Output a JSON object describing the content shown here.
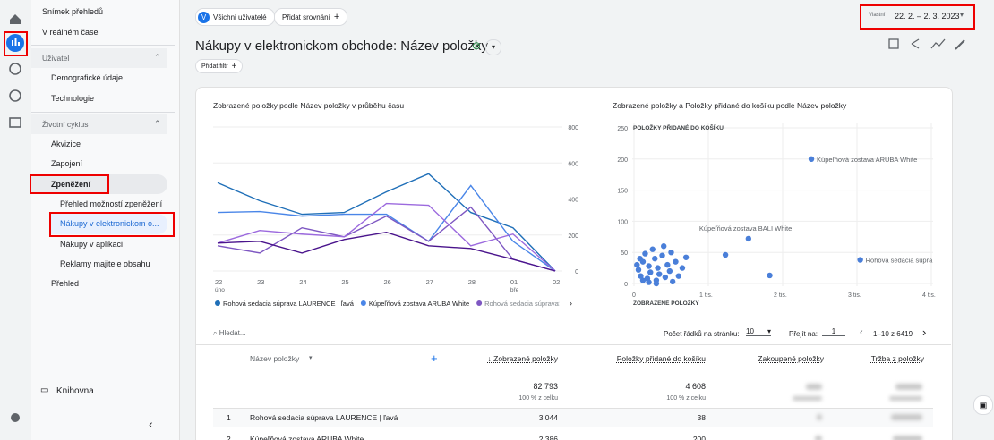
{
  "top_bar": {
    "audience_avatar": "V",
    "audience": "Všichni uživatelé",
    "add_comparison": "Přidat srovnání",
    "date_label": "Vlastní",
    "date_range": "22. 2. – 2. 3. 2023"
  },
  "sidebar": {
    "items": [
      "Snímek přehledů",
      "V reálném čase",
      "Uživatel",
      "Demografické údaje",
      "Technologie",
      "Životní cyklus",
      "Akvizice",
      "Zapojení",
      "Zpeněžení",
      "Přehled možností zpeněžení",
      "Nákupy v elektronickom o...",
      "Nákupy v aplikaci",
      "Reklamy majitele obsahu",
      "Přehled"
    ],
    "library": "Knihovna"
  },
  "header": {
    "title": "Nákupy v elektronickom obchode: Název položky",
    "add_filter": "Přidat filtr"
  },
  "chart_data": [
    {
      "type": "line",
      "title": "Zobrazené položky podle Název položky v průběhu času",
      "categories": [
        "22",
        "23",
        "24",
        "25",
        "26",
        "27",
        "28",
        "01",
        "02"
      ],
      "x_sublabels": [
        "úno",
        null,
        null,
        null,
        null,
        null,
        null,
        "bře",
        null
      ],
      "ylim": [
        0,
        800
      ],
      "yticks": [
        0,
        200,
        400,
        600,
        800
      ],
      "grid": true,
      "series": [
        {
          "name": "Rohová sedacia súprava LAURENCE | ľavá",
          "color": "#1f6fb8",
          "values": [
            490,
            390,
            315,
            325,
            440,
            540,
            325,
            240,
            0
          ]
        },
        {
          "name": "Kúpeľňová zostava ARUBA White",
          "color": "#4a86e8",
          "values": [
            325,
            330,
            305,
            315,
            315,
            165,
            475,
            165,
            0
          ]
        },
        {
          "name": "Rohová sedacia súprava",
          "color": "#7e57c2",
          "values": [
            140,
            100,
            240,
            190,
            305,
            165,
            355,
            65,
            0
          ]
        },
        {
          "color": "#9c6ade",
          "values": [
            155,
            225,
            205,
            190,
            375,
            365,
            140,
            205,
            0
          ]
        },
        {
          "color": "#4a148c",
          "values": [
            155,
            165,
            100,
            175,
            215,
            140,
            125,
            65,
            0
          ]
        }
      ]
    },
    {
      "type": "scatter",
      "title": "Zobrazené položky a Položky přidané do košíku podle Název položky",
      "xlabel": "ZOBRAZENÉ POLOŽKY",
      "ylabel": "POLOŽKY PŘIDANÉ DO KOŠÍKU",
      "xlim": [
        0,
        4000
      ],
      "xticks": [
        0,
        {
          "value": 1000,
          "label": "1 tis."
        },
        {
          "value": 2000,
          "label": "2 tis."
        },
        {
          "value": 3000,
          "label": "3 tis."
        },
        {
          "value": 4000,
          "label": "4 tis."
        }
      ],
      "ylim": [
        0,
        250
      ],
      "yticks": [
        0,
        50,
        100,
        150,
        200,
        250
      ],
      "grid": true,
      "series": [
        {
          "color": "#4a7fd9",
          "x": [
            40,
            60,
            90,
            120,
            150,
            180,
            200,
            220,
            250,
            280,
            300,
            320,
            340,
            380,
            400,
            420,
            450,
            480,
            500,
            520,
            560,
            600,
            650,
            700,
            120,
            200,
            300,
            80,
            1230,
            1540,
            1826,
            2386,
            3044
          ],
          "values": [
            30,
            22,
            12,
            35,
            48,
            8,
            28,
            18,
            55,
            40,
            5,
            25,
            15,
            45,
            60,
            10,
            30,
            20,
            50,
            3,
            35,
            12,
            25,
            42,
            5,
            2,
            0,
            40,
            46,
            72,
            13,
            200,
            38
          ],
          "labels": [
            null,
            null,
            null,
            null,
            null,
            null,
            null,
            null,
            null,
            null,
            null,
            null,
            null,
            null,
            null,
            null,
            null,
            null,
            null,
            null,
            null,
            null,
            null,
            null,
            null,
            null,
            null,
            null,
            null,
            "Kúpeľňová zostava BALI White",
            null,
            "Kúpeľňová zostava ARUBA White",
            "Rohová sedacia súpra"
          ]
        }
      ]
    }
  ],
  "table": {
    "search": "Hledat...",
    "rows_per_page_label": "Počet řádků na stránku:",
    "rows_per_page": "10",
    "go_to_label": "Přejít na:",
    "go_to": "1",
    "pagination": "1–10 z 6419",
    "columns": [
      "Název položky",
      "Zobrazené položky",
      "Položky přidané do košíku",
      "Zakoupené položky",
      "Tržba z položky"
    ],
    "totals": [
      [
        "82 793",
        "100 % z celku"
      ],
      [
        "4 608",
        "100 % z celku"
      ]
    ],
    "rows": [
      [
        "1",
        "Rohová sedacia súprava LAURENCE | ľavá",
        "3 044",
        "38"
      ],
      [
        "2",
        "Kúpeľňová zostava ARUBA White",
        "2 386",
        "200"
      ]
    ]
  }
}
